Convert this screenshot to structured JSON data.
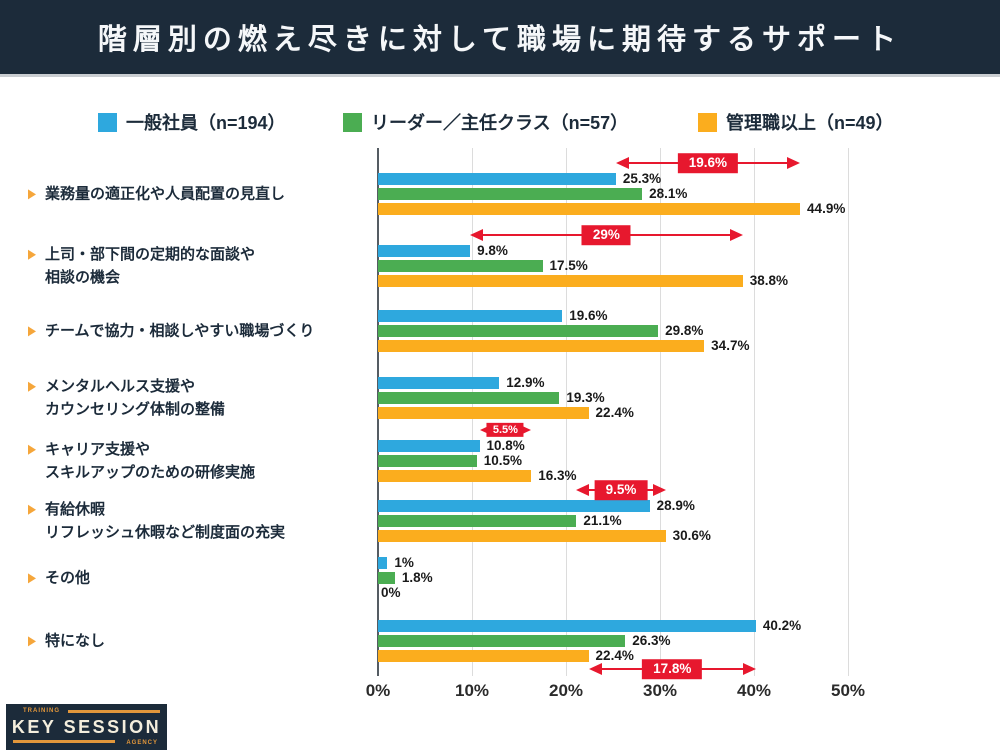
{
  "header": {
    "title": "階層別の燃え尽きに対して職場に期待するサポート"
  },
  "legend": [
    {
      "label": "一般社員（n=194）",
      "color": "#2ea8de"
    },
    {
      "label": "リーダー／主任クラス（n=57）",
      "color": "#4bad52"
    },
    {
      "label": "管理職以上（n=49）",
      "color": "#fbad1e"
    }
  ],
  "chart_data": {
    "type": "bar",
    "orientation": "horizontal",
    "title": "階層別の燃え尽きに対して職場に期待するサポート",
    "xlim": [
      0,
      50
    ],
    "x_tick_labels": [
      "0%",
      "10%",
      "20%",
      "30%",
      "40%",
      "50%"
    ],
    "grid": true,
    "legend_position": "top",
    "categories": [
      "業務量の適正化や人員配置の見直し",
      "上司・部下間の定期的な面談や\n相談の機会",
      "チームで協力・相談しやすい職場づくり",
      "メンタルヘルス支援や\nカウンセリング体制の整備",
      "キャリア支援や\nスキルアップのための研修実施",
      "有給休暇\nリフレッシュ休暇など制度面の充実",
      "その他",
      "特になし"
    ],
    "series": [
      {
        "name": "一般社員（n=194）",
        "color": "#2ea8de",
        "values": [
          25.3,
          9.8,
          19.6,
          12.9,
          10.8,
          28.9,
          1,
          40.2
        ],
        "value_labels": [
          "25.3%",
          "9.8%",
          "19.6%",
          "12.9%",
          "10.8%",
          "28.9%",
          "1%",
          "40.2%"
        ]
      },
      {
        "name": "リーダー／主任クラス（n=57）",
        "color": "#4bad52",
        "values": [
          28.1,
          17.5,
          29.8,
          19.3,
          10.5,
          21.1,
          1.8,
          26.3
        ],
        "value_labels": [
          "28.1%",
          "17.5%",
          "29.8%",
          "19.3%",
          "10.5%",
          "21.1%",
          "1.8%",
          "26.3%"
        ]
      },
      {
        "name": "管理職以上（n=49）",
        "color": "#fbad1e",
        "values": [
          44.9,
          38.8,
          34.7,
          22.4,
          16.3,
          30.6,
          0,
          22.4
        ],
        "value_labels": [
          "44.9%",
          "38.8%",
          "34.7%",
          "22.4%",
          "16.3%",
          "30.6%",
          "0%",
          "22.4%"
        ]
      }
    ],
    "annotations": [
      {
        "category_index": 0,
        "from": 25.3,
        "to": 44.9,
        "label": "19.6%",
        "position": "above"
      },
      {
        "category_index": 1,
        "from": 9.8,
        "to": 38.8,
        "label": "29%",
        "position": "above"
      },
      {
        "category_index": 4,
        "from": 10.8,
        "to": 16.3,
        "label": "5.5%",
        "position": "above"
      },
      {
        "category_index": 5,
        "from": 21.1,
        "to": 30.6,
        "label": "9.5%",
        "position": "above"
      },
      {
        "category_index": 7,
        "from": 22.4,
        "to": 40.2,
        "label": "17.8%",
        "position": "below"
      }
    ],
    "annotation_color": "#e7182e"
  },
  "logo": {
    "top_text": "TRAINING",
    "main_text": "KEY SESSION",
    "bottom_text": "AGENCY"
  }
}
